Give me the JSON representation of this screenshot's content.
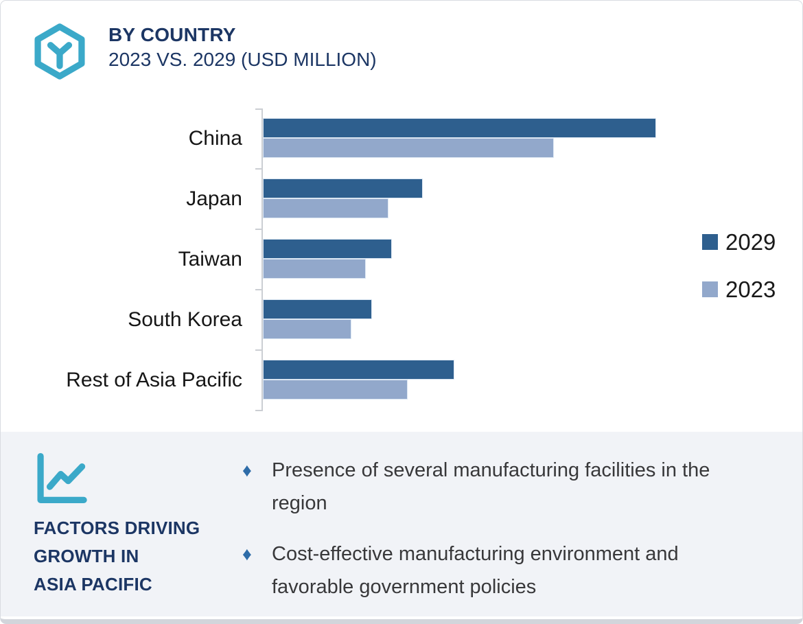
{
  "header": {
    "title": "BY COUNTRY",
    "subtitle": "2023 VS. 2029 (USD MILLION)",
    "icon": "hexagon-y-logo-icon"
  },
  "chart_data": {
    "type": "bar",
    "orientation": "horizontal",
    "title": "BY COUNTRY — 2023 VS. 2029 (USD MILLION)",
    "xlabel": "",
    "ylabel": "",
    "categories": [
      "China",
      "Japan",
      "Taiwan",
      "South Korea",
      "Rest of Asia Pacific"
    ],
    "series": [
      {
        "name": "2029",
        "color": "#2e5f8e",
        "values": [
          100,
          40.5,
          32.6,
          27.5,
          48.5
        ]
      },
      {
        "name": "2023",
        "color": "#92a8cb",
        "values": [
          73.9,
          31.7,
          25.9,
          22.2,
          36.6
        ]
      }
    ],
    "values_note": "axis is unlabeled; values are relative bar lengths with China 2029 = 100 (units: USD Million)",
    "xlim": [
      0,
      103
    ],
    "grid": false,
    "legend_position": "right"
  },
  "factors_panel": {
    "icon": "line-chart-icon",
    "heading_lines": [
      "FACTORS DRIVING",
      "GROWTH IN",
      "ASIA PACIFIC"
    ],
    "bullet_marker": "♦",
    "bullets": [
      "Presence of several manufacturing facilities in the region",
      "Cost-effective manufacturing environment and favorable government policies"
    ]
  },
  "colors": {
    "accent_teal": "#3ba9c9",
    "navy_text": "#1c3664",
    "dark_bar": "#2e5f8e",
    "light_bar": "#92a8cb",
    "panel_background": "#f1f3f7",
    "axis_gray": "#cbced3",
    "bullet_diamond": "#2e6ca8"
  }
}
